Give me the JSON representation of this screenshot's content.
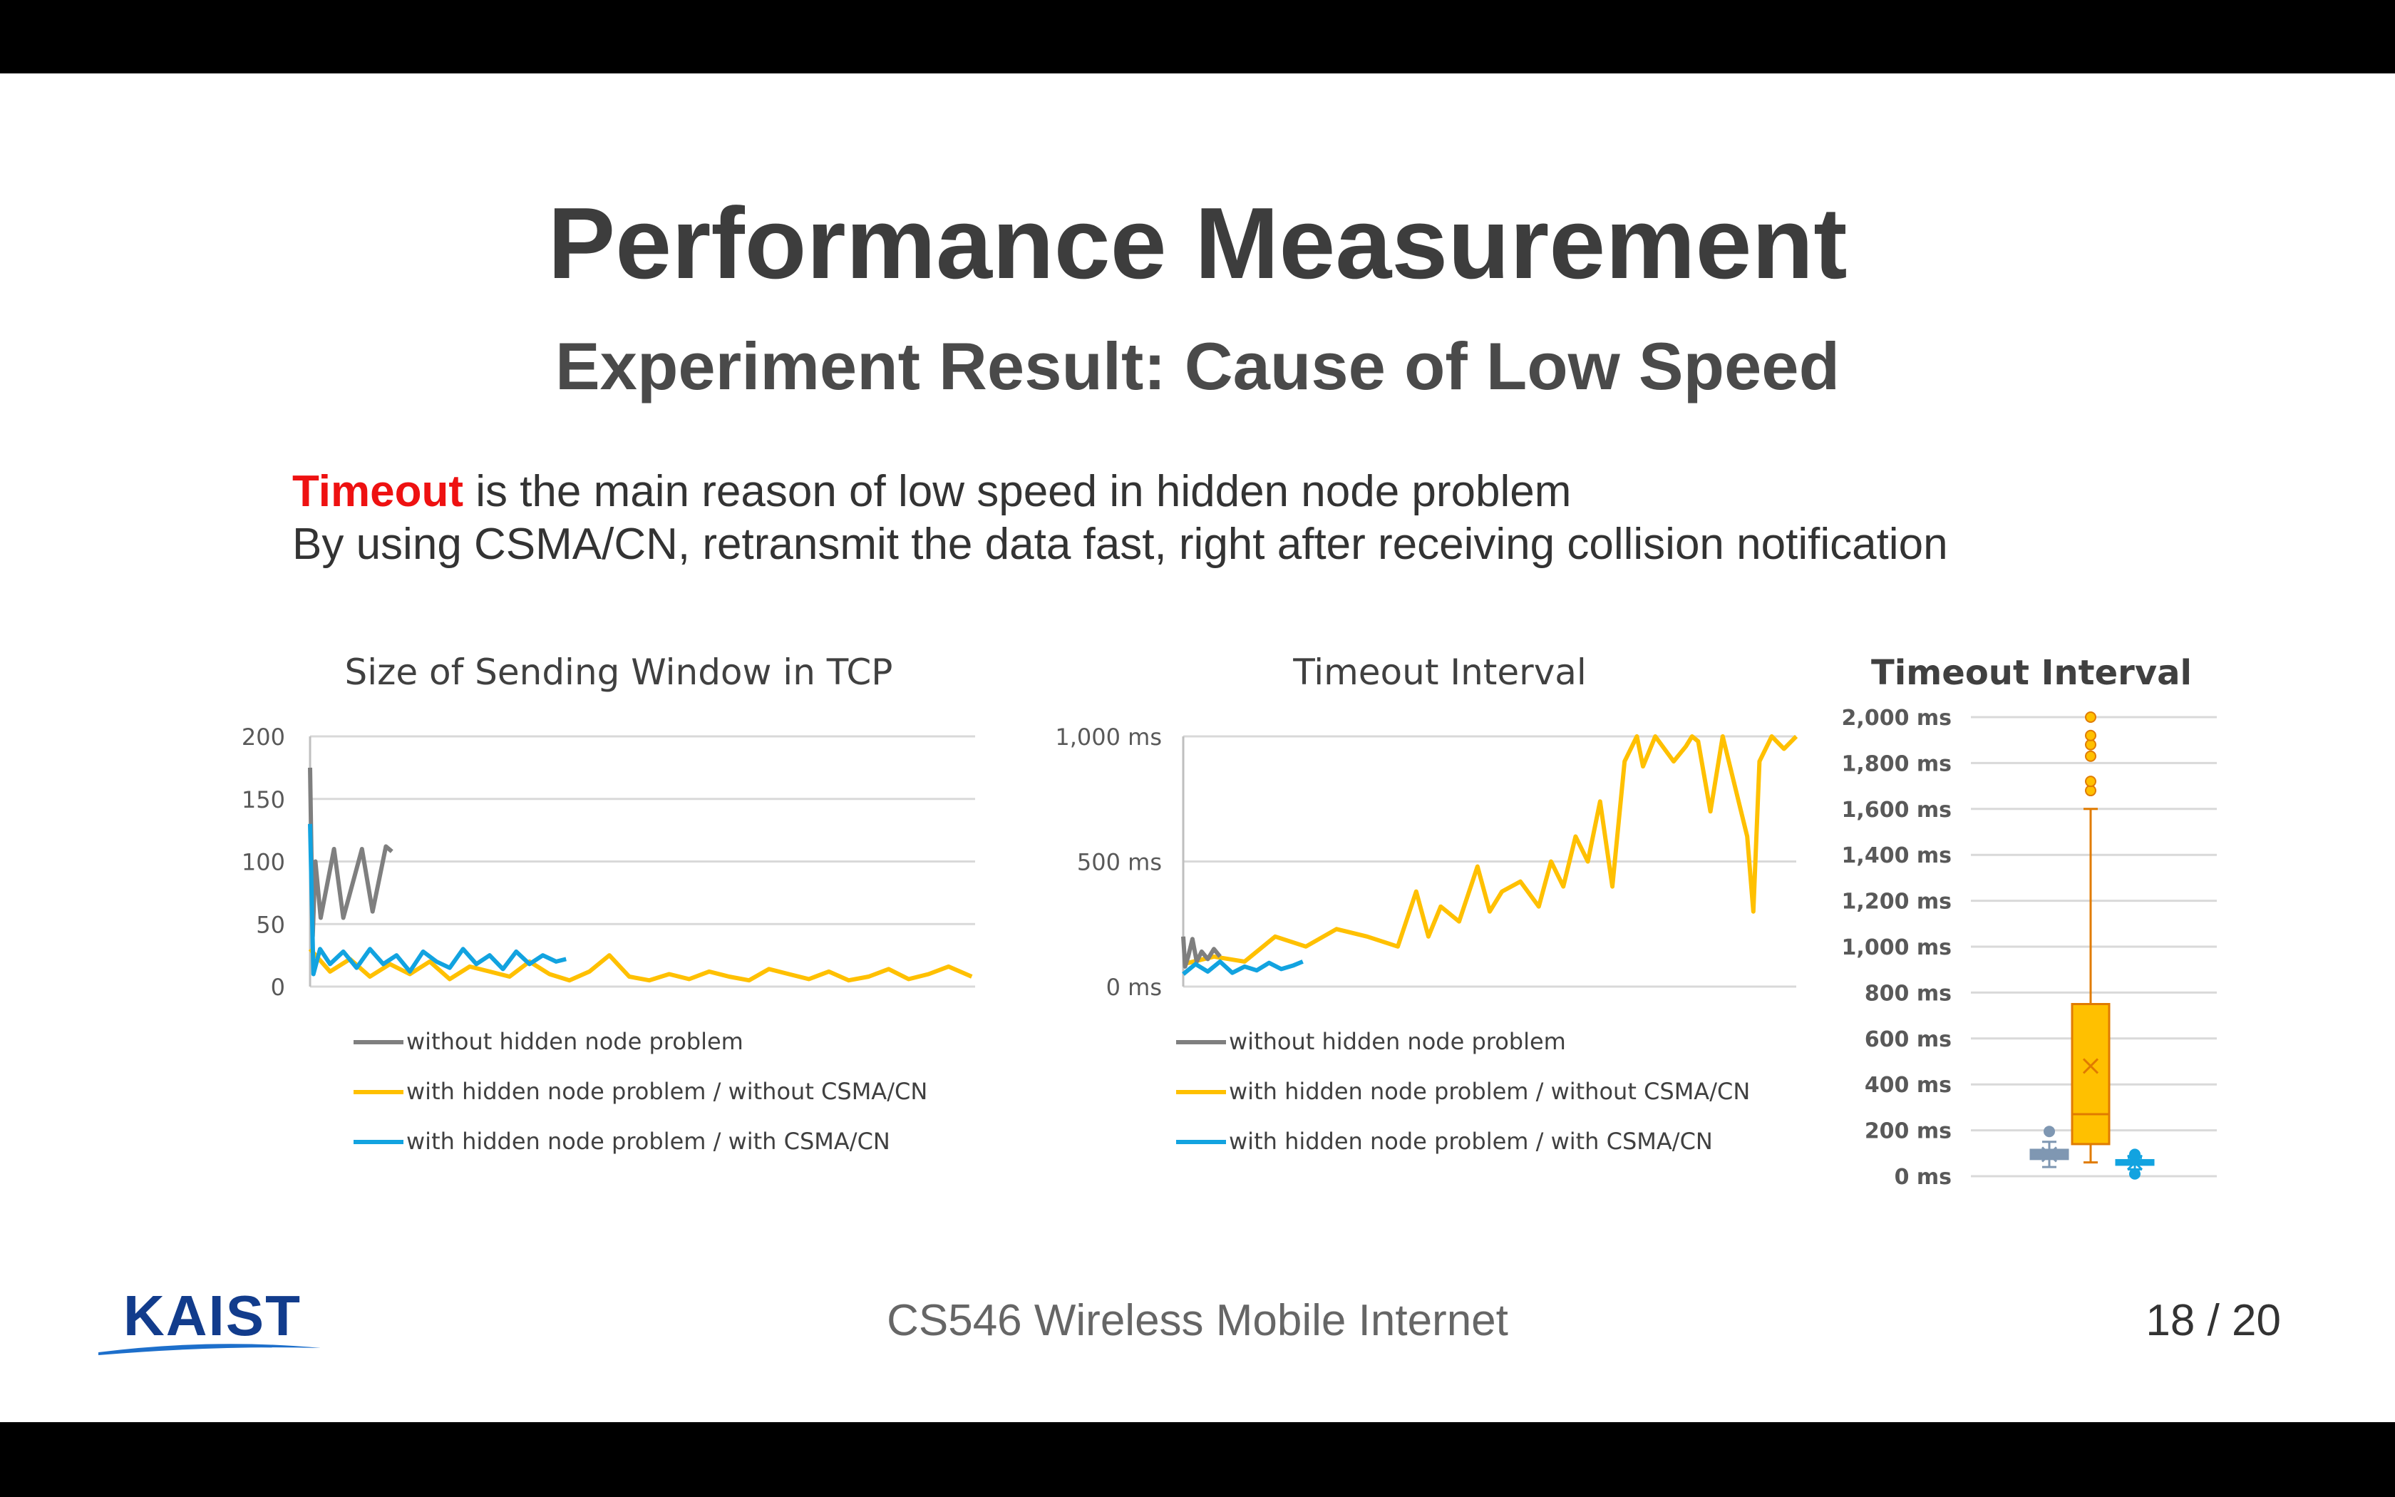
{
  "slide": {
    "title": "Performance Measurement",
    "subtitle": "Experiment Result: Cause of Low Speed",
    "bullets": {
      "line1_emph": "Timeout",
      "line1_rest": " is the main reason of low speed in hidden node problem",
      "line2": "By using CSMA/CN, retransmit the data fast, right after receiving collision notification"
    },
    "footer": {
      "course": "CS546 Wireless Mobile Internet",
      "page": "18 / 20",
      "logo_text": "KAIST"
    }
  },
  "colors": {
    "gray": "#7f7f7f",
    "yellow": "#ffc000",
    "blue": "#12a3e0",
    "box_gray": "#7f97b2",
    "text_dark": "#3d3d3d",
    "emph": "#ee1111",
    "logo_blue": "#123c8c"
  },
  "legend": [
    "without hidden node problem",
    "with hidden node problem / without CSMA/CN",
    "with hidden node problem / with CSMA/CN"
  ],
  "chart_data": [
    {
      "type": "line",
      "title": "Size of Sending Window in TCP",
      "ylim": [
        0,
        200
      ],
      "yticks": [
        0,
        50,
        100,
        150,
        200
      ],
      "ytick_labels": [
        "0",
        "50",
        "100",
        "150",
        "200"
      ],
      "x_domain": [
        0,
        100
      ],
      "grid": true,
      "legend_position": "bottom",
      "series": [
        {
          "name": "without hidden node problem",
          "color": "#7f7f7f",
          "x": [
            0,
            0.4,
            0.8,
            1.6,
            3.6,
            5.0,
            7.8,
            9.4,
            11.4,
            12.3
          ],
          "y": [
            175,
            40,
            100,
            55,
            110,
            55,
            110,
            60,
            112,
            108
          ]
        },
        {
          "name": "with hidden node problem / without CSMA/CN",
          "color": "#ffc000",
          "x": [
            0,
            3,
            6,
            9,
            12,
            15,
            18,
            21,
            24,
            27,
            30,
            33,
            36,
            39,
            42,
            45,
            48,
            51,
            54,
            57,
            60,
            63,
            66,
            69,
            72,
            75,
            78,
            81,
            84,
            87,
            90,
            93,
            96,
            99.5
          ],
          "y": [
            30,
            12,
            22,
            8,
            18,
            10,
            20,
            6,
            16,
            12,
            8,
            20,
            10,
            5,
            12,
            25,
            8,
            5,
            10,
            6,
            12,
            8,
            5,
            14,
            10,
            6,
            12,
            5,
            8,
            14,
            6,
            10,
            16,
            8
          ]
        },
        {
          "name": "with hidden node problem / with CSMA/CN",
          "color": "#12a3e0",
          "x": [
            0,
            0.5,
            1.5,
            3,
            5,
            7,
            9,
            11,
            13,
            15,
            17,
            19,
            21,
            23,
            25,
            27,
            29,
            31,
            33,
            35,
            37,
            38.5
          ],
          "y": [
            130,
            10,
            30,
            18,
            28,
            15,
            30,
            18,
            25,
            12,
            28,
            20,
            15,
            30,
            18,
            25,
            14,
            28,
            18,
            25,
            20,
            22
          ]
        }
      ]
    },
    {
      "type": "line",
      "title": "Timeout Interval",
      "ylim": [
        0,
        1000
      ],
      "yticks": [
        0,
        500,
        1000
      ],
      "ytick_labels": [
        "0 ms",
        "500 ms",
        "1,000 ms"
      ],
      "x_domain": [
        0,
        100
      ],
      "grid": true,
      "legend_position": "bottom",
      "series": [
        {
          "name": "without hidden node problem",
          "color": "#7f7f7f",
          "x": [
            0,
            0.3,
            0.8,
            1.5,
            2.2,
            3.0,
            4.0,
            5.0,
            6.0
          ],
          "y": [
            200,
            80,
            120,
            190,
            100,
            140,
            110,
            150,
            120
          ]
        },
        {
          "name": "with hidden node problem / without CSMA/CN",
          "color": "#ffc000",
          "x": [
            0,
            5,
            10,
            15,
            20,
            25,
            30,
            35,
            38,
            40,
            42,
            45,
            48,
            50,
            52,
            55,
            58,
            60,
            62,
            64,
            66,
            68,
            70,
            72,
            74,
            75,
            77,
            80,
            82,
            83,
            84,
            86,
            88,
            90,
            92,
            93,
            94,
            96,
            98,
            100
          ],
          "y": [
            90,
            120,
            100,
            200,
            160,
            230,
            200,
            160,
            380,
            200,
            320,
            260,
            480,
            300,
            380,
            420,
            320,
            500,
            400,
            600,
            500,
            740,
            400,
            900,
            1000,
            880,
            1000,
            900,
            960,
            1000,
            980,
            700,
            1000,
            800,
            600,
            300,
            900,
            1000,
            950,
            1000
          ]
        },
        {
          "name": "with hidden node problem / with CSMA/CN",
          "color": "#12a3e0",
          "x": [
            0,
            2,
            4,
            6,
            8,
            10,
            12,
            14,
            16,
            18,
            19.5
          ],
          "y": [
            50,
            90,
            60,
            100,
            55,
            80,
            65,
            95,
            70,
            85,
            100
          ]
        }
      ]
    },
    {
      "type": "box",
      "title": "Timeout Interval",
      "ylim": [
        0,
        2000
      ],
      "yticks": [
        0,
        200,
        400,
        600,
        800,
        1000,
        1200,
        1400,
        1600,
        1800,
        2000
      ],
      "ytick_labels": [
        "0 ms",
        "200 ms",
        "400 ms",
        "600 ms",
        "800 ms",
        "1,000 ms",
        "1,200 ms",
        "1,400 ms",
        "1,600 ms",
        "1,800 ms",
        "2,000 ms"
      ],
      "grid": true,
      "boxes": [
        {
          "name": "without hidden node problem",
          "color": "#7f97b2",
          "min": 40,
          "q1": 75,
          "median": 95,
          "q3": 115,
          "max": 150,
          "mean": 95,
          "outliers": [
            195
          ]
        },
        {
          "name": "with hidden node problem / without CSMA/CN",
          "color": "#ffc000",
          "min": 60,
          "q1": 140,
          "median": 270,
          "q3": 750,
          "max": 1600,
          "mean": 480,
          "outliers": [
            1680,
            1720,
            1830,
            1880,
            1920,
            2000
          ]
        },
        {
          "name": "with hidden node problem / with CSMA/CN",
          "color": "#12a3e0",
          "min": 30,
          "q1": 50,
          "median": 60,
          "q3": 70,
          "max": 80,
          "mean": 60,
          "outliers": [
            10,
            95
          ]
        }
      ]
    }
  ]
}
